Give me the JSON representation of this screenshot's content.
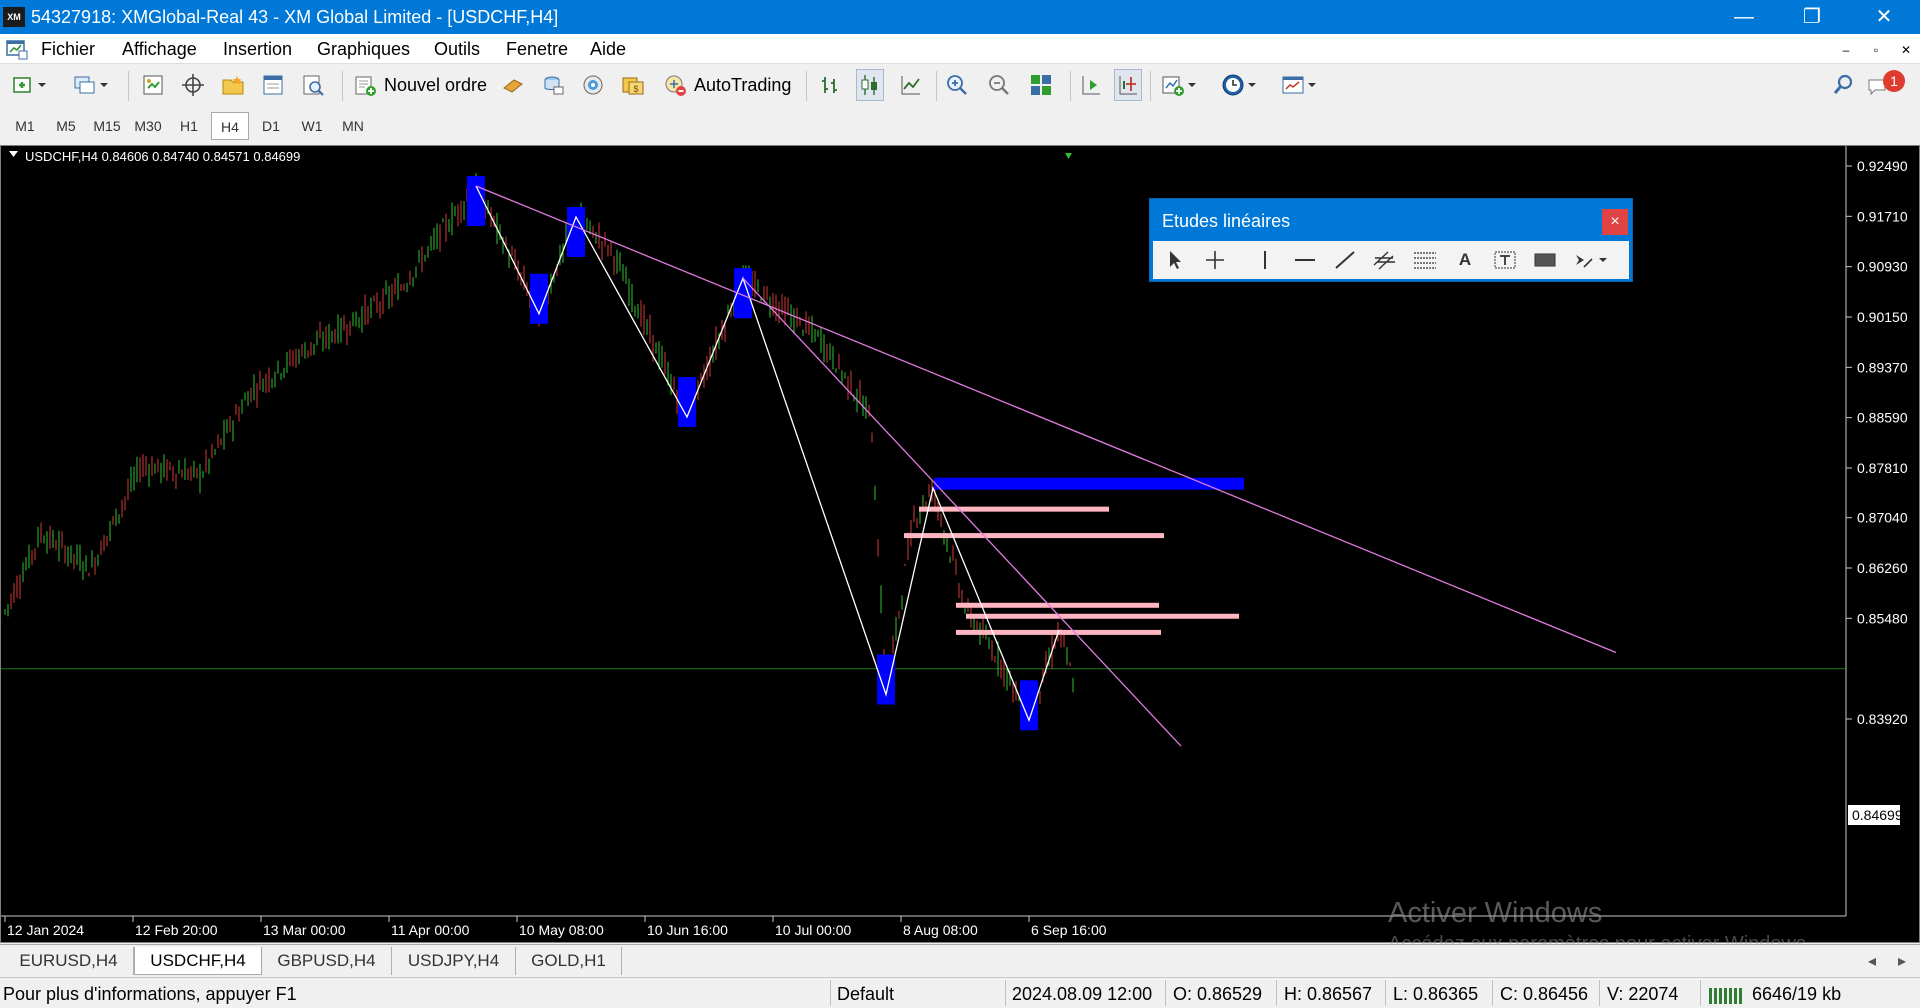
{
  "window": {
    "title": "54327918: XMGlobal-Real 43 - XM Global Limited - [USDCHF,H4]",
    "logo_text": "XM",
    "minimize_glyph": "—",
    "maximize_glyph": "❐",
    "close_glyph": "✕"
  },
  "menu": {
    "items": [
      "Fichier",
      "Affichage",
      "Insertion",
      "Graphiques",
      "Outils",
      "Fenetre",
      "Aide"
    ],
    "mdi_minimize": "–",
    "mdi_restore": "▫",
    "mdi_close": "✕"
  },
  "toolbar": {
    "new_order_label": "Nouvel ordre",
    "autotrading_label": "AutoTrading",
    "notification_count": "1"
  },
  "timeframes": {
    "items": [
      "M1",
      "M5",
      "M15",
      "M30",
      "H1",
      "H4",
      "D1",
      "W1",
      "MN"
    ],
    "active": "H4"
  },
  "chart": {
    "header": "USDCHF,H4  0.84606 0.84740 0.84571 0.84699",
    "current_price": "0.84699",
    "price_labels": [
      "0.92490",
      "0.91710",
      "0.90930",
      "0.90150",
      "0.89370",
      "0.88590",
      "0.87810",
      "0.87040",
      "0.86260",
      "0.85480",
      "0.84699",
      "0.83920"
    ],
    "time_labels": [
      "12 Jan 2024",
      "12 Feb 20:00",
      "13 Mar 00:00",
      "11 Apr 00:00",
      "10 May 08:00",
      "10 Jun 16:00",
      "10 Jul 00:00",
      "8 Aug 08:00",
      "6 Sep 16:00"
    ],
    "colors": {
      "background": "#000000",
      "bull": "#2fbf2f",
      "bear": "#d43a3a",
      "zigzag": "#ffffff",
      "trendline": "#e07be0",
      "zone": "#0000ff",
      "level": "#ffb6c1",
      "price_line": "#1f7a1f"
    }
  },
  "line_studies": {
    "title": "Etudes linéaires",
    "close_glyph": "×",
    "text_tool_glyph": "A"
  },
  "tabs": {
    "items": [
      "EURUSD,H4",
      "USDCHF,H4",
      "GBPUSD,H4",
      "USDJPY,H4",
      "GOLD,H1"
    ],
    "active": "USDCHF,H4",
    "scroll_left": "◂",
    "scroll_right": "▸"
  },
  "status": {
    "help": "Pour plus d'informations, appuyer F1",
    "profile": "Default",
    "datetime": "2024.08.09 12:00",
    "open": "O: 0.86529",
    "high": "H: 0.86567",
    "low": "L: 0.86365",
    "close": "C: 0.86456",
    "volume": "V: 22074",
    "traffic": "6646/19 kb"
  },
  "watermark": {
    "line1": "Activer Windows",
    "line2": "Accédez aux paramètres pour activer Windows."
  }
}
